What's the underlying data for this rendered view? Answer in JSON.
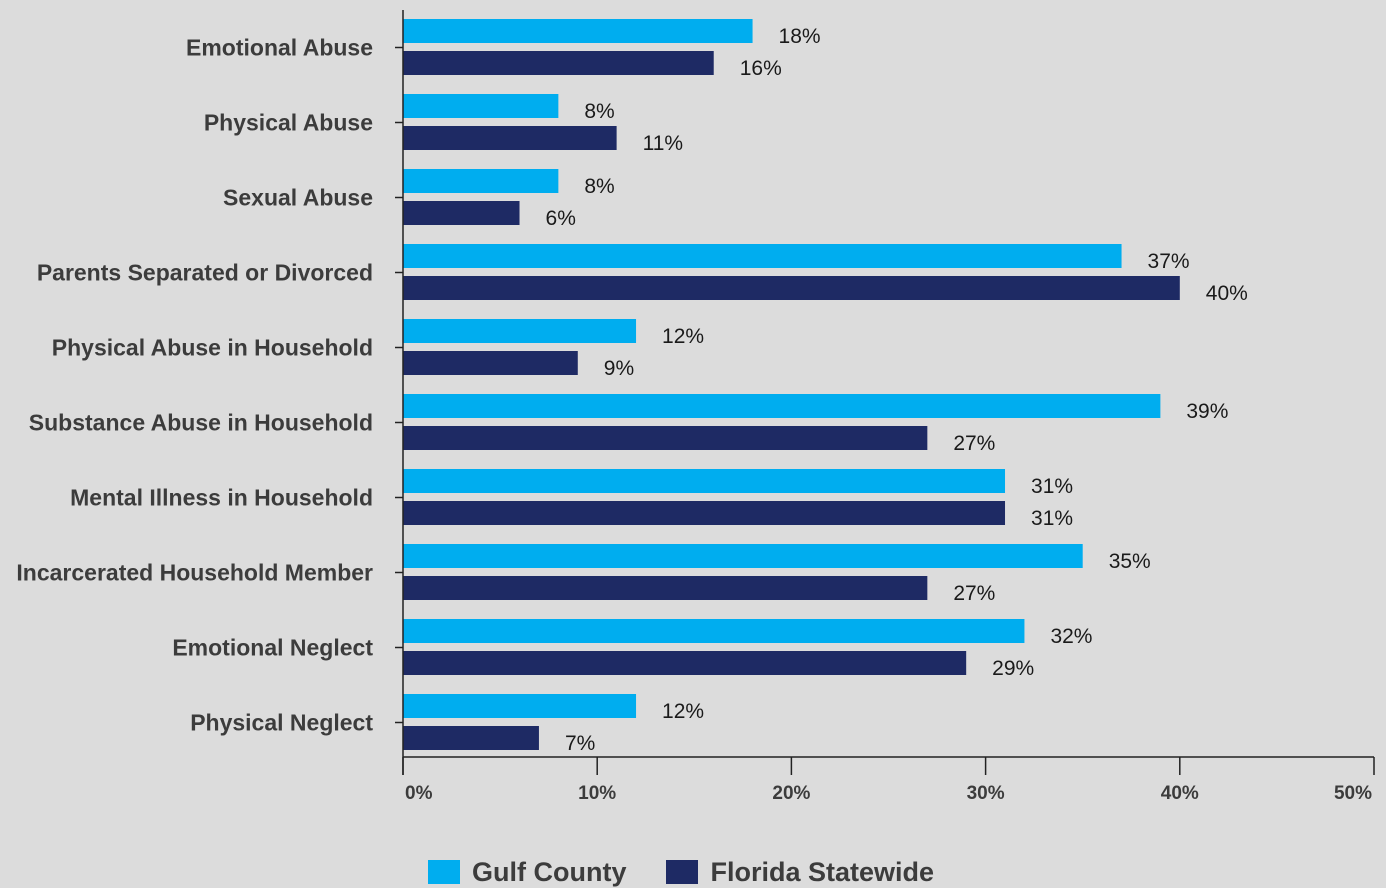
{
  "chart_data": {
    "type": "bar",
    "orientation": "horizontal",
    "categories": [
      "Emotional Abuse",
      "Physical Abuse",
      "Sexual Abuse",
      "Parents Separated or Divorced",
      "Physical Abuse in Household",
      "Substance Abuse in Household",
      "Mental Illness in Household",
      "Incarcerated Household Member",
      "Emotional Neglect",
      "Physical Neglect"
    ],
    "series": [
      {
        "name": "Gulf County",
        "color": "#00adef",
        "values": [
          18,
          8,
          8,
          37,
          12,
          39,
          31,
          35,
          32,
          12
        ]
      },
      {
        "name": "Florida Statewide",
        "color": "#1e2a64",
        "values": [
          16,
          11,
          6,
          40,
          9,
          27,
          31,
          27,
          29,
          7
        ]
      }
    ],
    "value_labels": [
      [
        "18%",
        "8%",
        "8%",
        "37%",
        "12%",
        "39%",
        "31%",
        "35%",
        "32%",
        "12%"
      ],
      [
        "16%",
        "11%",
        "6%",
        "40%",
        "9%",
        "27%",
        "31%",
        "27%",
        "29%",
        "7%"
      ]
    ],
    "xlim": [
      0,
      50
    ],
    "xticks": [
      "0%",
      "10%",
      "20%",
      "30%",
      "40%",
      "50%"
    ],
    "xtick_values": [
      0,
      10,
      20,
      30,
      40,
      50
    ],
    "grid": false,
    "legend_position": "bottom"
  }
}
